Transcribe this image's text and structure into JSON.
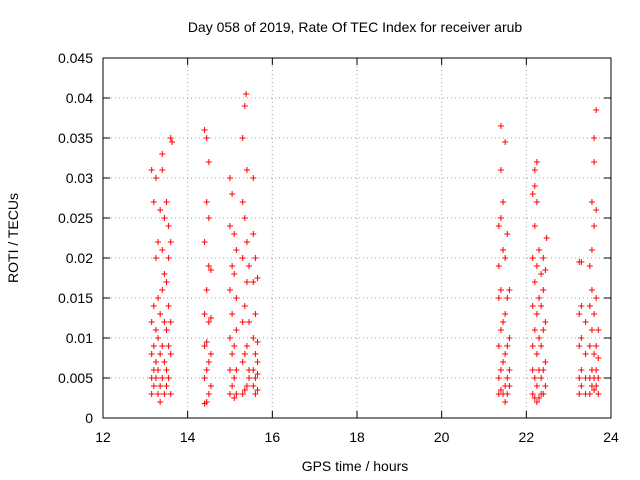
{
  "chart_data": {
    "type": "scatter",
    "title": "Day 058 of 2019, Rate Of TEC Index for receiver arub",
    "xlabel": "GPS time / hours",
    "ylabel": "ROTI / TECUs",
    "xlim": [
      12,
      24
    ],
    "ylim": [
      0,
      0.045
    ],
    "x_ticks": [
      12,
      14,
      16,
      18,
      20,
      22,
      24
    ],
    "x_tick_labels": [
      "12",
      "14",
      "16",
      "18",
      "20",
      "22",
      "24"
    ],
    "y_ticks": [
      0,
      0.005,
      0.01,
      0.015,
      0.02,
      0.025,
      0.03,
      0.035,
      0.04,
      0.045
    ],
    "y_tick_labels": [
      "0",
      "0.005",
      "0.01",
      "0.015",
      "0.02",
      "0.025",
      "0.03",
      "0.035",
      "0.04",
      "0.045"
    ],
    "grid": true,
    "marker": "+",
    "marker_color": "#ff0000",
    "series": [
      {
        "name": "ROTI",
        "points": [
          [
            13.15,
            0.003
          ],
          [
            13.15,
            0.005
          ],
          [
            13.15,
            0.008
          ],
          [
            13.15,
            0.012
          ],
          [
            13.15,
            0.031
          ],
          [
            13.2,
            0.004
          ],
          [
            13.2,
            0.006
          ],
          [
            13.2,
            0.009
          ],
          [
            13.2,
            0.014
          ],
          [
            13.2,
            0.027
          ],
          [
            13.25,
            0.005
          ],
          [
            13.25,
            0.007
          ],
          [
            13.25,
            0.011
          ],
          [
            13.25,
            0.02
          ],
          [
            13.25,
            0.03
          ],
          [
            13.3,
            0.003
          ],
          [
            13.3,
            0.006
          ],
          [
            13.3,
            0.01
          ],
          [
            13.3,
            0.015
          ],
          [
            13.3,
            0.022
          ],
          [
            13.35,
            0.002
          ],
          [
            13.35,
            0.004
          ],
          [
            13.35,
            0.008
          ],
          [
            13.35,
            0.013
          ],
          [
            13.35,
            0.026
          ],
          [
            13.4,
            0.005
          ],
          [
            13.4,
            0.009
          ],
          [
            13.4,
            0.016
          ],
          [
            13.4,
            0.021
          ],
          [
            13.4,
            0.031
          ],
          [
            13.4,
            0.033
          ],
          [
            13.45,
            0.003
          ],
          [
            13.45,
            0.007
          ],
          [
            13.45,
            0.012
          ],
          [
            13.45,
            0.018
          ],
          [
            13.45,
            0.025
          ],
          [
            13.5,
            0.004
          ],
          [
            13.5,
            0.006
          ],
          [
            13.5,
            0.011
          ],
          [
            13.5,
            0.017
          ],
          [
            13.5,
            0.027
          ],
          [
            13.55,
            0.005
          ],
          [
            13.55,
            0.009
          ],
          [
            13.55,
            0.014
          ],
          [
            13.55,
            0.02
          ],
          [
            13.55,
            0.024
          ],
          [
            13.6,
            0.003
          ],
          [
            13.6,
            0.008
          ],
          [
            13.6,
            0.012
          ],
          [
            13.6,
            0.022
          ],
          [
            13.6,
            0.035
          ],
          [
            13.63,
            0.0345
          ],
          [
            14.4,
            0.0018
          ],
          [
            14.4,
            0.005
          ],
          [
            14.4,
            0.009
          ],
          [
            14.4,
            0.013
          ],
          [
            14.4,
            0.022
          ],
          [
            14.4,
            0.036
          ],
          [
            14.45,
            0.002
          ],
          [
            14.45,
            0.006
          ],
          [
            14.45,
            0.0095
          ],
          [
            14.45,
            0.016
          ],
          [
            14.45,
            0.027
          ],
          [
            14.45,
            0.035
          ],
          [
            14.5,
            0.003
          ],
          [
            14.5,
            0.007
          ],
          [
            14.5,
            0.012
          ],
          [
            14.5,
            0.019
          ],
          [
            14.5,
            0.025
          ],
          [
            14.5,
            0.032
          ],
          [
            14.55,
            0.004
          ],
          [
            14.55,
            0.008
          ],
          [
            14.55,
            0.0125
          ],
          [
            14.55,
            0.0185
          ],
          [
            15.0,
            0.003
          ],
          [
            15.0,
            0.006
          ],
          [
            15.0,
            0.01
          ],
          [
            15.0,
            0.016
          ],
          [
            15.0,
            0.024
          ],
          [
            15.0,
            0.03
          ],
          [
            15.05,
            0.004
          ],
          [
            15.05,
            0.008
          ],
          [
            15.05,
            0.013
          ],
          [
            15.05,
            0.019
          ],
          [
            15.05,
            0.028
          ],
          [
            15.1,
            0.0025
          ],
          [
            15.1,
            0.005
          ],
          [
            15.1,
            0.009
          ],
          [
            15.1,
            0.018
          ],
          [
            15.1,
            0.023
          ],
          [
            15.15,
            0.003
          ],
          [
            15.15,
            0.006
          ],
          [
            15.15,
            0.011
          ],
          [
            15.15,
            0.015
          ],
          [
            15.15,
            0.021
          ],
          [
            15.3,
            0.003
          ],
          [
            15.3,
            0.007
          ],
          [
            15.3,
            0.012
          ],
          [
            15.3,
            0.02
          ],
          [
            15.3,
            0.027
          ],
          [
            15.3,
            0.035
          ],
          [
            15.35,
            0.0035
          ],
          [
            15.35,
            0.008
          ],
          [
            15.35,
            0.014
          ],
          [
            15.35,
            0.025
          ],
          [
            15.35,
            0.039
          ],
          [
            15.38,
            0.0405
          ],
          [
            15.4,
            0.004
          ],
          [
            15.4,
            0.009
          ],
          [
            15.4,
            0.017
          ],
          [
            15.4,
            0.022
          ],
          [
            15.4,
            0.031
          ],
          [
            15.45,
            0.005
          ],
          [
            15.45,
            0.006
          ],
          [
            15.45,
            0.012
          ],
          [
            15.45,
            0.019
          ],
          [
            15.55,
            0.004
          ],
          [
            15.55,
            0.006
          ],
          [
            15.55,
            0.01
          ],
          [
            15.55,
            0.017
          ],
          [
            15.55,
            0.023
          ],
          [
            15.55,
            0.03
          ],
          [
            15.6,
            0.003
          ],
          [
            15.6,
            0.005
          ],
          [
            15.6,
            0.008
          ],
          [
            15.6,
            0.013
          ],
          [
            15.6,
            0.02
          ],
          [
            15.65,
            0.0035
          ],
          [
            15.65,
            0.0055
          ],
          [
            15.65,
            0.007
          ],
          [
            15.65,
            0.0095
          ],
          [
            15.65,
            0.0175
          ],
          [
            21.35,
            0.003
          ],
          [
            21.35,
            0.005
          ],
          [
            21.35,
            0.009
          ],
          [
            21.35,
            0.015
          ],
          [
            21.35,
            0.019
          ],
          [
            21.35,
            0.024
          ],
          [
            21.4,
            0.0035
          ],
          [
            21.4,
            0.006
          ],
          [
            21.4,
            0.011
          ],
          [
            21.4,
            0.016
          ],
          [
            21.4,
            0.025
          ],
          [
            21.4,
            0.031
          ],
          [
            21.4,
            0.0365
          ],
          [
            21.45,
            0.003
          ],
          [
            21.45,
            0.007
          ],
          [
            21.45,
            0.012
          ],
          [
            21.45,
            0.021
          ],
          [
            21.45,
            0.027
          ],
          [
            21.5,
            0.002
          ],
          [
            21.5,
            0.004
          ],
          [
            21.5,
            0.008
          ],
          [
            21.5,
            0.013
          ],
          [
            21.5,
            0.02
          ],
          [
            21.5,
            0.0345
          ],
          [
            21.55,
            0.003
          ],
          [
            21.55,
            0.005
          ],
          [
            21.55,
            0.009
          ],
          [
            21.55,
            0.015
          ],
          [
            21.55,
            0.023
          ],
          [
            21.6,
            0.004
          ],
          [
            21.6,
            0.006
          ],
          [
            21.6,
            0.01
          ],
          [
            21.6,
            0.016
          ],
          [
            22.15,
            0.003
          ],
          [
            22.15,
            0.006
          ],
          [
            22.15,
            0.009
          ],
          [
            22.15,
            0.014
          ],
          [
            22.15,
            0.02
          ],
          [
            22.15,
            0.028
          ],
          [
            22.2,
            0.0025
          ],
          [
            22.2,
            0.005
          ],
          [
            22.2,
            0.011
          ],
          [
            22.2,
            0.017
          ],
          [
            22.2,
            0.024
          ],
          [
            22.2,
            0.029
          ],
          [
            22.2,
            0.031
          ],
          [
            22.25,
            0.002
          ],
          [
            22.25,
            0.004
          ],
          [
            22.25,
            0.008
          ],
          [
            22.25,
            0.013
          ],
          [
            22.25,
            0.019
          ],
          [
            22.25,
            0.027
          ],
          [
            22.25,
            0.032
          ],
          [
            22.3,
            0.0025
          ],
          [
            22.3,
            0.006
          ],
          [
            22.3,
            0.01
          ],
          [
            22.3,
            0.015
          ],
          [
            22.3,
            0.021
          ],
          [
            22.35,
            0.003
          ],
          [
            22.35,
            0.005
          ],
          [
            22.35,
            0.009
          ],
          [
            22.35,
            0.014
          ],
          [
            22.35,
            0.018
          ],
          [
            22.4,
            0.003
          ],
          [
            22.4,
            0.006
          ],
          [
            22.4,
            0.011
          ],
          [
            22.4,
            0.016
          ],
          [
            22.4,
            0.02
          ],
          [
            22.45,
            0.004
          ],
          [
            22.45,
            0.007
          ],
          [
            22.45,
            0.012
          ],
          [
            22.45,
            0.0185
          ],
          [
            22.48,
            0.0225
          ],
          [
            23.25,
            0.003
          ],
          [
            23.25,
            0.005
          ],
          [
            23.25,
            0.009
          ],
          [
            23.25,
            0.013
          ],
          [
            23.25,
            0.0195
          ],
          [
            23.3,
            0.004
          ],
          [
            23.3,
            0.006
          ],
          [
            23.3,
            0.01
          ],
          [
            23.3,
            0.014
          ],
          [
            23.3,
            0.0195
          ],
          [
            23.4,
            0.003
          ],
          [
            23.4,
            0.005
          ],
          [
            23.4,
            0.008
          ],
          [
            23.4,
            0.012
          ],
          [
            23.5,
            0.003
          ],
          [
            23.5,
            0.005
          ],
          [
            23.5,
            0.009
          ],
          [
            23.5,
            0.014
          ],
          [
            23.5,
            0.019
          ],
          [
            23.55,
            0.004
          ],
          [
            23.55,
            0.006
          ],
          [
            23.55,
            0.011
          ],
          [
            23.55,
            0.016
          ],
          [
            23.55,
            0.021
          ],
          [
            23.55,
            0.027
          ],
          [
            23.6,
            0.0035
          ],
          [
            23.6,
            0.005
          ],
          [
            23.6,
            0.008
          ],
          [
            23.6,
            0.013
          ],
          [
            23.6,
            0.024
          ],
          [
            23.6,
            0.032
          ],
          [
            23.6,
            0.035
          ],
          [
            23.65,
            0.004
          ],
          [
            23.65,
            0.006
          ],
          [
            23.65,
            0.009
          ],
          [
            23.65,
            0.015
          ],
          [
            23.65,
            0.026
          ],
          [
            23.65,
            0.0385
          ],
          [
            23.7,
            0.003
          ],
          [
            23.7,
            0.005
          ],
          [
            23.7,
            0.0075
          ],
          [
            23.7,
            0.011
          ]
        ]
      }
    ]
  }
}
